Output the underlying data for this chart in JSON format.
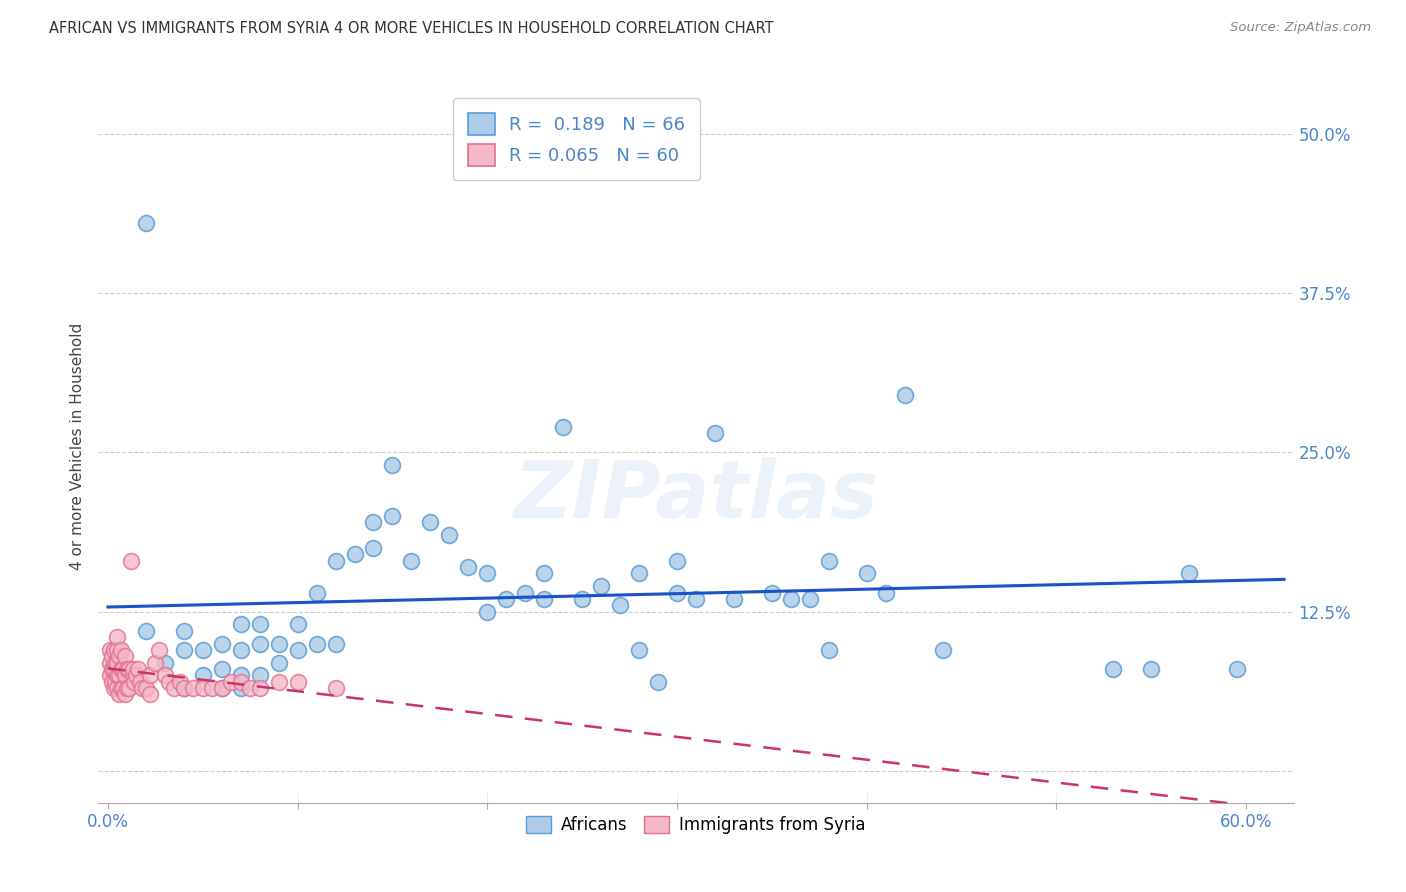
{
  "title": "AFRICAN VS IMMIGRANTS FROM SYRIA 4 OR MORE VEHICLES IN HOUSEHOLD CORRELATION CHART",
  "source": "Source: ZipAtlas.com",
  "ylabel": "4 or more Vehicles in Household",
  "xlim": [
    -0.005,
    0.625
  ],
  "ylim": [
    -0.025,
    0.535
  ],
  "xticks": [
    0.0,
    0.1,
    0.2,
    0.3,
    0.4,
    0.5,
    0.6
  ],
  "yticks": [
    0.0,
    0.125,
    0.25,
    0.375,
    0.5
  ],
  "ytick_labels": [
    "",
    "12.5%",
    "25.0%",
    "37.5%",
    "50.0%"
  ],
  "xtick_labels_left": "0.0%",
  "xtick_labels_right": "60.0%",
  "legend_africans_R": "0.189",
  "legend_africans_N": "66",
  "legend_syria_R": "0.065",
  "legend_syria_N": "60",
  "color_africans": "#aecde8",
  "color_africans_edge": "#5b9bd5",
  "color_syria": "#f5b8c8",
  "color_syria_edge": "#e07090",
  "color_trend_africans": "#1a52c8",
  "color_trend_syria": "#cc3366",
  "background_color": "#ffffff",
  "grid_color": "#cccccc",
  "title_color": "#333333",
  "axis_color": "#4a86c8",
  "africans_x": [
    0.02,
    0.02,
    0.03,
    0.04,
    0.04,
    0.04,
    0.05,
    0.05,
    0.06,
    0.06,
    0.06,
    0.07,
    0.07,
    0.07,
    0.07,
    0.08,
    0.08,
    0.08,
    0.09,
    0.09,
    0.1,
    0.1,
    0.11,
    0.11,
    0.12,
    0.12,
    0.13,
    0.14,
    0.14,
    0.15,
    0.15,
    0.16,
    0.17,
    0.18,
    0.19,
    0.2,
    0.2,
    0.21,
    0.22,
    0.23,
    0.23,
    0.24,
    0.25,
    0.26,
    0.27,
    0.28,
    0.28,
    0.29,
    0.3,
    0.3,
    0.31,
    0.32,
    0.33,
    0.35,
    0.36,
    0.37,
    0.38,
    0.38,
    0.4,
    0.41,
    0.42,
    0.44,
    0.53,
    0.55,
    0.57,
    0.595
  ],
  "africans_y": [
    0.43,
    0.11,
    0.085,
    0.065,
    0.095,
    0.11,
    0.075,
    0.095,
    0.065,
    0.08,
    0.1,
    0.065,
    0.075,
    0.095,
    0.115,
    0.075,
    0.1,
    0.115,
    0.085,
    0.1,
    0.095,
    0.115,
    0.1,
    0.14,
    0.1,
    0.165,
    0.17,
    0.175,
    0.195,
    0.2,
    0.24,
    0.165,
    0.195,
    0.185,
    0.16,
    0.155,
    0.125,
    0.135,
    0.14,
    0.135,
    0.155,
    0.27,
    0.135,
    0.145,
    0.13,
    0.095,
    0.155,
    0.07,
    0.165,
    0.14,
    0.135,
    0.265,
    0.135,
    0.14,
    0.135,
    0.135,
    0.165,
    0.095,
    0.155,
    0.14,
    0.295,
    0.095,
    0.08,
    0.08,
    0.155,
    0.08
  ],
  "syria_x": [
    0.001,
    0.001,
    0.001,
    0.002,
    0.002,
    0.002,
    0.003,
    0.003,
    0.003,
    0.004,
    0.004,
    0.005,
    0.005,
    0.005,
    0.005,
    0.005,
    0.006,
    0.006,
    0.006,
    0.007,
    0.007,
    0.007,
    0.008,
    0.008,
    0.009,
    0.009,
    0.009,
    0.01,
    0.01,
    0.011,
    0.011,
    0.012,
    0.013,
    0.013,
    0.014,
    0.015,
    0.016,
    0.017,
    0.018,
    0.02,
    0.022,
    0.022,
    0.025,
    0.027,
    0.03,
    0.032,
    0.035,
    0.038,
    0.04,
    0.045,
    0.05,
    0.055,
    0.06,
    0.065,
    0.07,
    0.075,
    0.08,
    0.09,
    0.1,
    0.12
  ],
  "syria_y": [
    0.075,
    0.085,
    0.095,
    0.07,
    0.08,
    0.09,
    0.065,
    0.08,
    0.095,
    0.07,
    0.085,
    0.065,
    0.075,
    0.085,
    0.095,
    0.105,
    0.06,
    0.075,
    0.09,
    0.065,
    0.08,
    0.095,
    0.065,
    0.08,
    0.06,
    0.075,
    0.09,
    0.065,
    0.08,
    0.065,
    0.08,
    0.165,
    0.075,
    0.08,
    0.07,
    0.075,
    0.08,
    0.07,
    0.065,
    0.065,
    0.06,
    0.075,
    0.085,
    0.095,
    0.075,
    0.07,
    0.065,
    0.07,
    0.065,
    0.065,
    0.065,
    0.065,
    0.065,
    0.07,
    0.07,
    0.065,
    0.065,
    0.07,
    0.07,
    0.065
  ]
}
